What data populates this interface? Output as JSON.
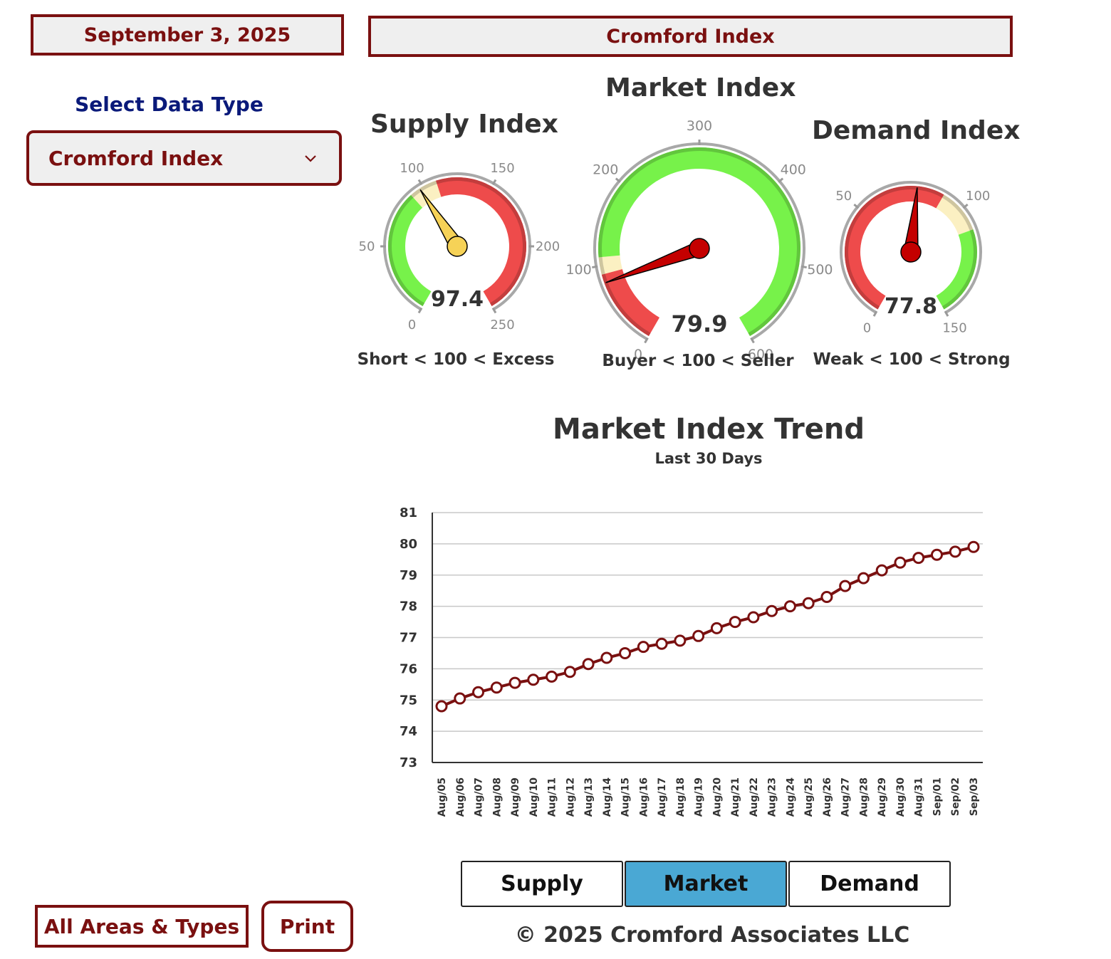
{
  "header": {
    "date": "September 3, 2025",
    "title": "Cromford Index"
  },
  "sidebar": {
    "select_label": "Select Data Type",
    "select_value": "Cromford Index",
    "all_areas_label": "All Areas & Types",
    "print_label": "Print"
  },
  "colors": {
    "brand": "#7a1010",
    "green": "#77f24a",
    "yellow": "#fbf0c2",
    "red": "#ee4b4b",
    "active_tab": "#4aa8d4",
    "line": "#7a1010"
  },
  "gauges": {
    "supply": {
      "title": "Supply Index",
      "value": 97.4,
      "value_label": "97.4",
      "min": 0,
      "max": 250,
      "ticks": [
        0,
        50,
        100,
        150,
        200,
        250
      ],
      "bands": [
        {
          "from": 0,
          "to": 90,
          "color": "green"
        },
        {
          "from": 90,
          "to": 110,
          "color": "yellow"
        },
        {
          "from": 110,
          "to": 250,
          "color": "red"
        }
      ],
      "needle_color": "#f6d257",
      "caption": "Short < 100 < Excess"
    },
    "market": {
      "title": "Market Index",
      "value": 79.9,
      "value_label": "79.9",
      "min": 0,
      "max": 600,
      "ticks": [
        0,
        100,
        200,
        300,
        400,
        500,
        600
      ],
      "bands": [
        {
          "from": 0,
          "to": 90,
          "color": "red"
        },
        {
          "from": 90,
          "to": 110,
          "color": "yellow"
        },
        {
          "from": 110,
          "to": 600,
          "color": "green"
        }
      ],
      "needle_color": "#c40000",
      "caption": "Buyer < 100 < Seller"
    },
    "demand": {
      "title": "Demand Index",
      "value": 77.8,
      "value_label": "77.8",
      "min": 0,
      "max": 150,
      "ticks": [
        0,
        50,
        100,
        150
      ],
      "bands": [
        {
          "from": 0,
          "to": 90,
          "color": "red"
        },
        {
          "from": 90,
          "to": 110,
          "color": "yellow"
        },
        {
          "from": 110,
          "to": 150,
          "color": "green"
        }
      ],
      "needle_color": "#c40000",
      "caption": "Weak < 100 < Strong"
    }
  },
  "chart_data": {
    "type": "line",
    "title": "Market Index Trend",
    "subtitle": "Last 30 Days",
    "xlabel": "",
    "ylabel": "",
    "ylim": [
      73,
      81
    ],
    "yticks": [
      73,
      74,
      75,
      76,
      77,
      78,
      79,
      80,
      81
    ],
    "grid": true,
    "categories": [
      "Aug/05",
      "Aug/06",
      "Aug/07",
      "Aug/08",
      "Aug/09",
      "Aug/10",
      "Aug/11",
      "Aug/12",
      "Aug/13",
      "Aug/14",
      "Aug/15",
      "Aug/16",
      "Aug/17",
      "Aug/18",
      "Aug/19",
      "Aug/20",
      "Aug/21",
      "Aug/22",
      "Aug/23",
      "Aug/24",
      "Aug/25",
      "Aug/26",
      "Aug/27",
      "Aug/28",
      "Aug/29",
      "Aug/30",
      "Aug/31",
      "Sep/01",
      "Sep/02",
      "Sep/03"
    ],
    "series": [
      {
        "values": [
          74.8,
          75.05,
          75.25,
          75.4,
          75.55,
          75.65,
          75.75,
          75.9,
          76.15,
          76.35,
          76.5,
          76.7,
          76.8,
          76.9,
          77.05,
          77.3,
          77.5,
          77.65,
          77.85,
          78.0,
          78.1,
          78.3,
          78.65,
          78.9,
          79.15,
          79.4,
          79.55,
          79.65,
          79.75,
          79.9
        ]
      }
    ]
  },
  "tabs": [
    {
      "label": "Supply",
      "active": false
    },
    {
      "label": "Market",
      "active": true
    },
    {
      "label": "Demand",
      "active": false
    }
  ],
  "footer": {
    "copyright": "© 2025 Cromford Associates LLC"
  }
}
